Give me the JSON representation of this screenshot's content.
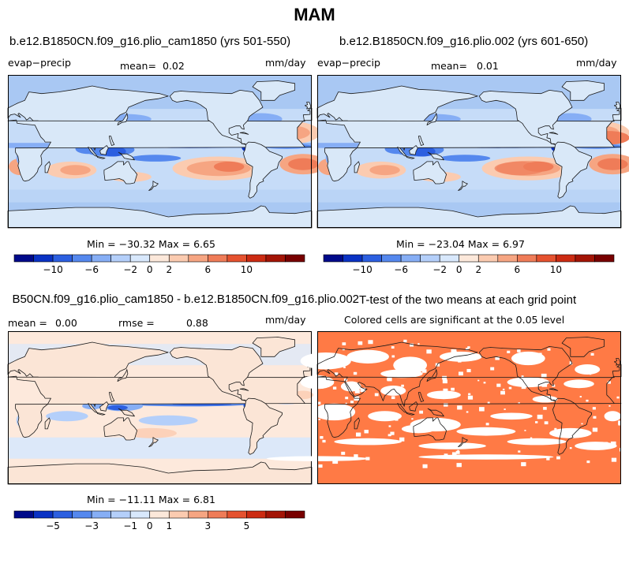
{
  "page": {
    "title": "MAM"
  },
  "colors": {
    "ocean_base": "#dcebfa",
    "land": "#ffffff",
    "coast": "#1a1a1a",
    "significant": "#ff7a45"
  },
  "chart_data": [
    {
      "type": "heatmap",
      "title": "b.e12.B1850CN.f09_g16.plio_cam1850 (yrs 501-550)",
      "variable": "evap−precip",
      "mean_label": "mean=",
      "mean_value": "0.02",
      "units": "mm/day",
      "stats_text": "Min = −30.32  Max =    6.65",
      "min": -30.32,
      "max": 6.65,
      "colorbar": {
        "colors": [
          "#000a8a",
          "#0a32c4",
          "#2c5fe0",
          "#5588ee",
          "#86aef5",
          "#b4cffa",
          "#d8e8fc",
          "#fce8da",
          "#fbcbb0",
          "#f6a582",
          "#ef7c58",
          "#e5522f",
          "#cc2b12",
          "#a31406",
          "#780000"
        ],
        "tick_labels": [
          "−10",
          "−6",
          "−2",
          "0",
          "2",
          "6",
          "10"
        ],
        "levels": [
          -10,
          -6,
          -2,
          0,
          2,
          6,
          10
        ]
      }
    },
    {
      "type": "heatmap",
      "title": "b.e12.B1850CN.f09_g16.plio.002 (yrs 601-650)",
      "variable": "evap−precip",
      "mean_label": "mean=",
      "mean_value": "0.01",
      "units": "mm/day",
      "stats_text": "Min = −23.04  Max =    6.97",
      "min": -23.04,
      "max": 6.97,
      "colorbar": {
        "colors": [
          "#000a8a",
          "#0a32c4",
          "#2c5fe0",
          "#5588ee",
          "#86aef5",
          "#b4cffa",
          "#d8e8fc",
          "#fce8da",
          "#fbcbb0",
          "#f6a582",
          "#ef7c58",
          "#e5522f",
          "#cc2b12",
          "#a31406",
          "#780000"
        ],
        "tick_labels": [
          "−10",
          "−6",
          "−2",
          "0",
          "2",
          "6",
          "10"
        ],
        "levels": [
          -10,
          -6,
          -2,
          0,
          2,
          6,
          10
        ]
      }
    },
    {
      "type": "heatmap",
      "title": "B50CN.f09_g16.plio_cam1850 - b.e12.B1850CN.f09_g16.plio.002",
      "mean_label": "mean =",
      "mean_value": "0.00",
      "rmse_label": "rmse =",
      "rmse_value": "0.88",
      "units": "mm/day",
      "stats_text": "Min = −11.11  Max =    6.81",
      "min": -11.11,
      "max": 6.81,
      "colorbar": {
        "colors": [
          "#000a8a",
          "#0a32c4",
          "#2c5fe0",
          "#5588ee",
          "#86aef5",
          "#b4cffa",
          "#d8e8fc",
          "#fce8da",
          "#fbcbb0",
          "#f6a582",
          "#ef7c58",
          "#e5522f",
          "#cc2b12",
          "#a31406",
          "#780000"
        ],
        "tick_labels": [
          "−5",
          "−3",
          "−1",
          "0",
          "1",
          "3",
          "5"
        ],
        "levels": [
          -5,
          -3,
          -1,
          0,
          1,
          3,
          5
        ]
      }
    },
    {
      "type": "heatmap",
      "title": "T-test of the two means at each grid point",
      "subtitle": "Colored cells are significant at the 0.05 level"
    }
  ]
}
